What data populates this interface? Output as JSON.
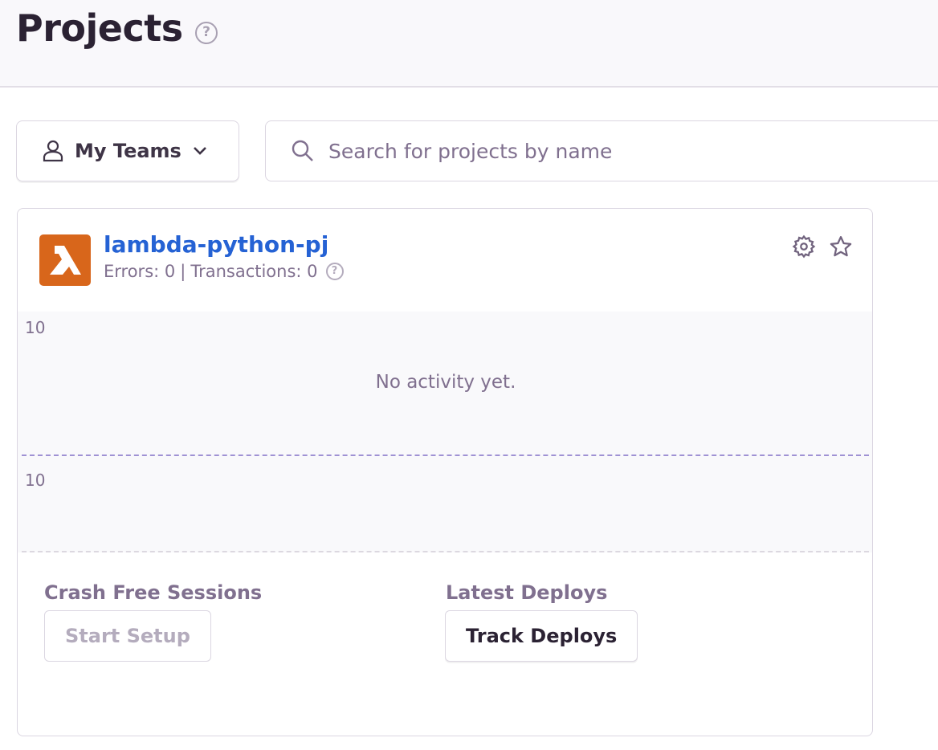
{
  "header": {
    "title": "Projects",
    "help_icon": "question-circle-icon"
  },
  "filters": {
    "teams_label": "My Teams",
    "search_placeholder": "Search for projects by name"
  },
  "project": {
    "name": "lambda-python-pj",
    "platform_icon": "aws-lambda-icon",
    "platform_color": "#d8661b",
    "errors": "Errors: 0",
    "separator": "|",
    "transactions": "Transactions: 0",
    "chart": {
      "top_tick": "10",
      "bottom_tick": "10",
      "empty_message": "No activity yet."
    },
    "crash_free_label": "Crash Free Sessions",
    "start_setup_label": "Start Setup",
    "deploys_label": "Latest Deploys",
    "track_deploys_label": "Track Deploys"
  }
}
